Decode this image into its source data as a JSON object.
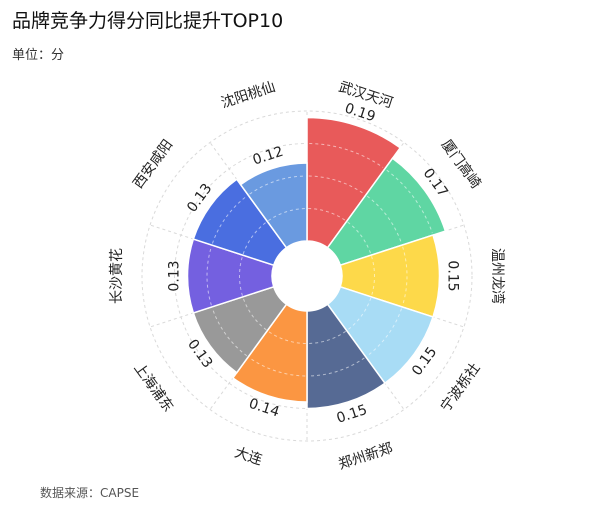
{
  "header": {
    "title": "品牌竞争力得分同比提升TOP10",
    "unit": "单位：分"
  },
  "footer": {
    "source": "数据来源：CAPSE"
  },
  "chart_data": {
    "type": "polar-bar",
    "title": "品牌竞争力得分同比提升TOP10",
    "unit": "分",
    "categories": [
      "武汉天河",
      "厦门高崎",
      "温州龙湾",
      "宁波栎社",
      "郑州新郑",
      "大连",
      "上海浦东",
      "长沙黄花",
      "西安咸阳",
      "沈阳桃仙"
    ],
    "values": [
      0.19,
      0.17,
      0.15,
      0.15,
      0.15,
      0.14,
      0.13,
      0.13,
      0.13,
      0.12
    ],
    "value_labels": [
      "0.19",
      "0.17",
      "0.15",
      "0.15",
      "0.15",
      "0.14",
      "0.13",
      "0.13",
      "0.13",
      "0.12"
    ],
    "colors": [
      "#e85a5a",
      "#5fd6a3",
      "#fdd94a",
      "#a8dcf5",
      "#566a94",
      "#fb9642",
      "#999999",
      "#7460e0",
      "#4a6ee0",
      "#6a9ae0"
    ],
    "rmax": 0.2,
    "grid_rings": [
      0.05,
      0.1,
      0.15,
      0.2
    ],
    "grid": true
  }
}
